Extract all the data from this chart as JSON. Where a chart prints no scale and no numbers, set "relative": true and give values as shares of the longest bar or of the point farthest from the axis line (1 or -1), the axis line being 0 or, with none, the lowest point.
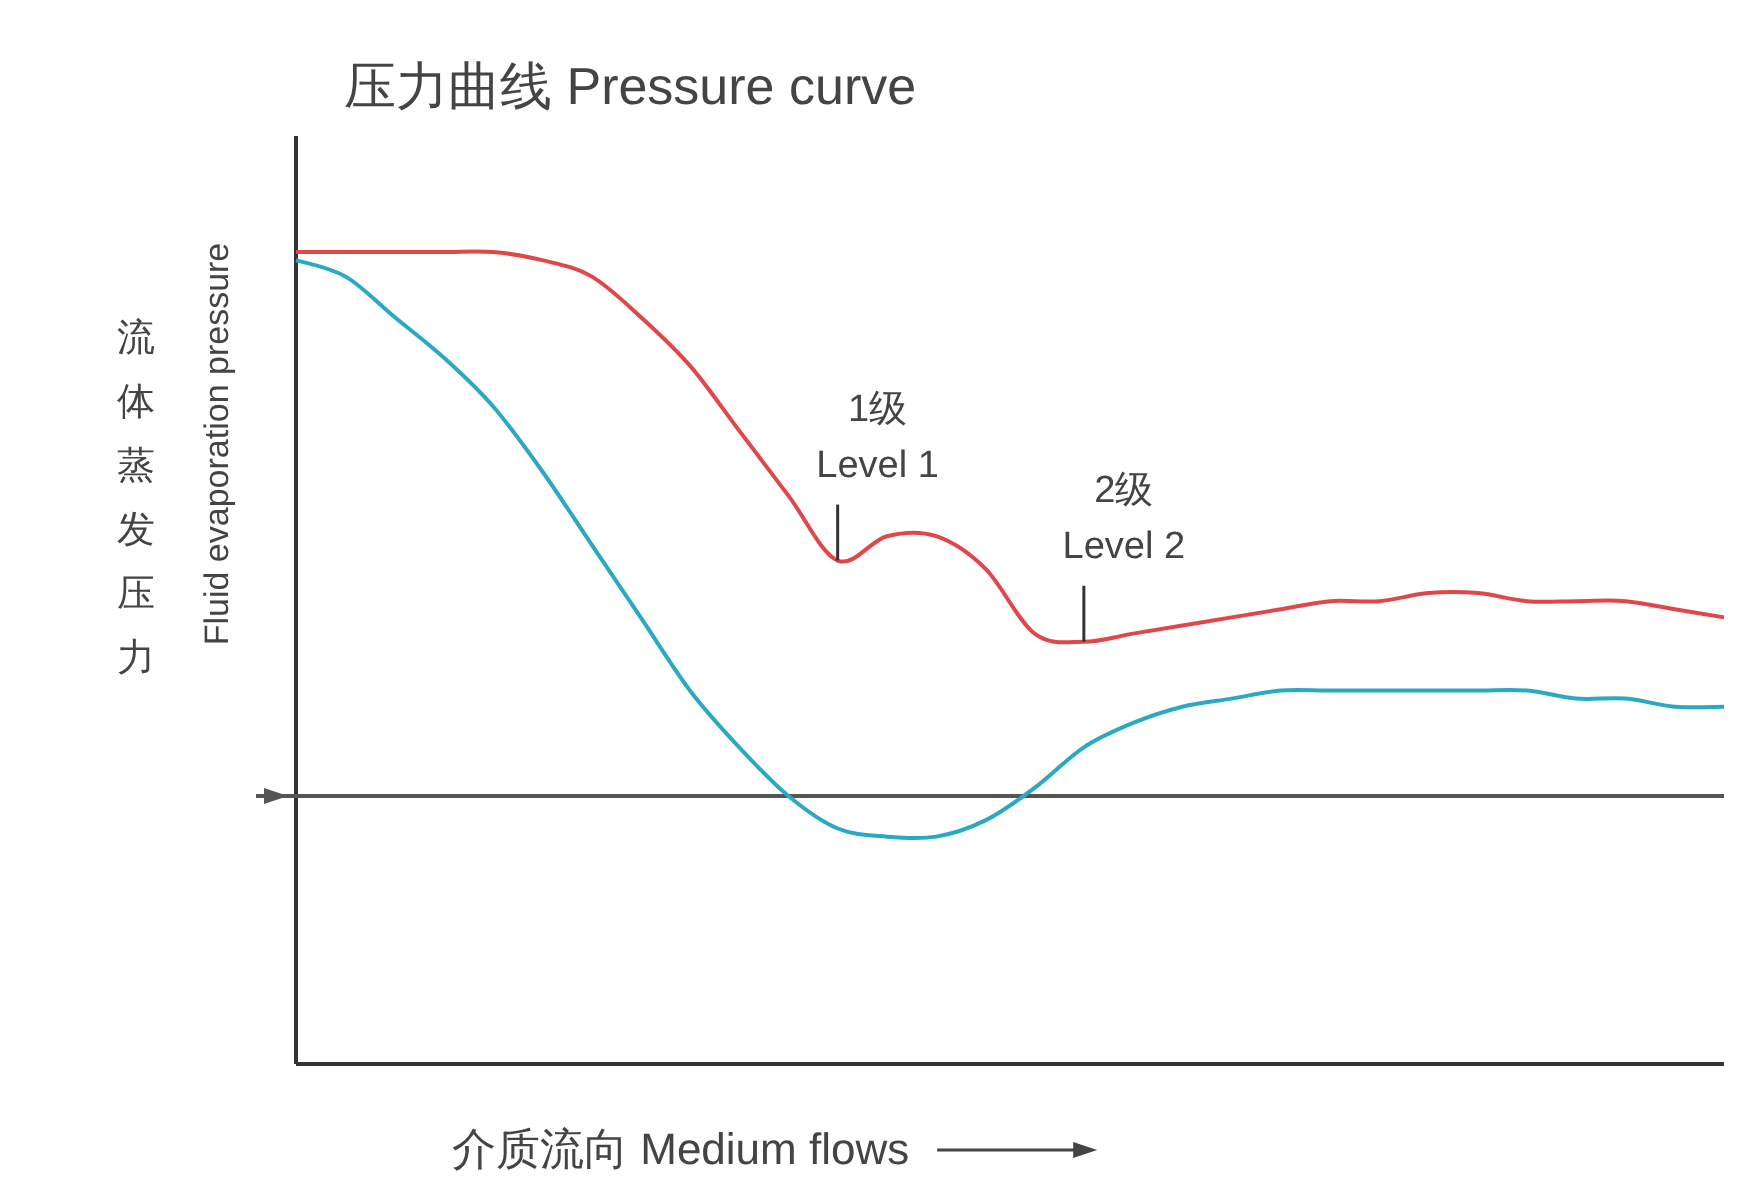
{
  "chart_data": {
    "type": "line",
    "title": "压力曲线 Pressure curve",
    "xlabel": "介质流向 Medium flows",
    "ylabel": "Fluid evaporation pressure",
    "relative": true,
    "marker": "none",
    "line_style": "solid",
    "categories": [
      null,
      null,
      null,
      null,
      null,
      null,
      null,
      null,
      null,
      null,
      null,
      null,
      null,
      null,
      null,
      null,
      null,
      null,
      null,
      null,
      null,
      null,
      null,
      null,
      null,
      null,
      null,
      null,
      null,
      null
    ],
    "series": [
      {
        "color": "#e0474a",
        "values": [
          1.0,
          1.0,
          1.0,
          1.0,
          1.0,
          0.99,
          0.97,
          0.92,
          0.86,
          0.78,
          0.7,
          0.62,
          0.65,
          0.65,
          0.61,
          0.53,
          0.52,
          0.53,
          0.54,
          0.55,
          0.56,
          0.57,
          0.57,
          0.58,
          0.58,
          0.57,
          0.57,
          0.57,
          0.56,
          0.55
        ]
      },
      {
        "color": "#2ba8c2",
        "values": [
          0.99,
          0.97,
          0.92,
          0.87,
          0.81,
          0.73,
          0.64,
          0.55,
          0.46,
          0.39,
          0.33,
          0.29,
          0.28,
          0.28,
          0.3,
          0.34,
          0.39,
          0.42,
          0.44,
          0.45,
          0.46,
          0.46,
          0.46,
          0.46,
          0.46,
          0.46,
          0.45,
          0.45,
          0.44,
          0.44
        ]
      }
    ],
    "ref_lines": [
      {
        "axis": "y",
        "value": 0.33,
        "color": "#555555"
      }
    ],
    "annotations": [
      "1级",
      "Level 1",
      "2级",
      "Level 2",
      "流体蒸发压力"
    ]
  }
}
